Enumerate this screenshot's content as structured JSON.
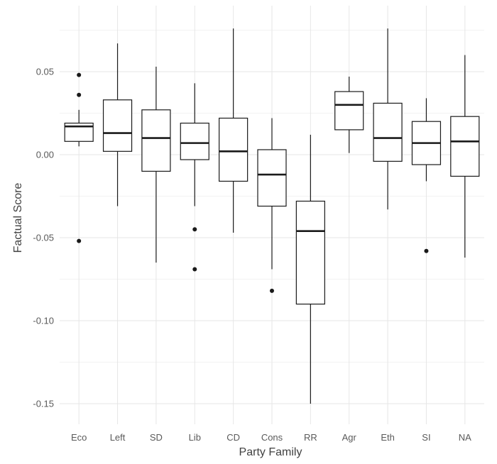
{
  "chart_data": {
    "type": "boxplot",
    "xlabel": "Party Family",
    "ylabel": "Factual Score",
    "ylim": [
      -0.162,
      0.078
    ],
    "yticks": [
      0.05,
      0.0,
      -0.05,
      -0.1,
      -0.15
    ],
    "ytick_labels": [
      "0.05",
      "0.00",
      "-0.05",
      "-0.10",
      "-0.15"
    ],
    "grid": true,
    "categories": [
      "Eco",
      "Left",
      "SD",
      "Lib",
      "CD",
      "Cons",
      "RR",
      "Agr",
      "Eth",
      "SI",
      "NA"
    ],
    "boxes": [
      {
        "category": "Eco",
        "whisker_low": 0.005,
        "q1": 0.008,
        "median": 0.017,
        "q3": 0.019,
        "whisker_high": 0.027,
        "outliers": [
          0.048,
          0.036,
          -0.052
        ]
      },
      {
        "category": "Left",
        "whisker_low": -0.031,
        "q1": 0.002,
        "median": 0.013,
        "q3": 0.033,
        "whisker_high": 0.067,
        "outliers": []
      },
      {
        "category": "SD",
        "whisker_low": -0.065,
        "q1": -0.01,
        "median": 0.01,
        "q3": 0.027,
        "whisker_high": 0.053,
        "outliers": []
      },
      {
        "category": "Lib",
        "whisker_low": -0.031,
        "q1": -0.003,
        "median": 0.007,
        "q3": 0.019,
        "whisker_high": 0.043,
        "outliers": [
          -0.045,
          -0.069
        ]
      },
      {
        "category": "CD",
        "whisker_low": -0.047,
        "q1": -0.016,
        "median": 0.002,
        "q3": 0.022,
        "whisker_high": 0.076,
        "outliers": []
      },
      {
        "category": "Cons",
        "whisker_low": -0.069,
        "q1": -0.031,
        "median": -0.012,
        "q3": 0.003,
        "whisker_high": 0.022,
        "outliers": [
          -0.082
        ]
      },
      {
        "category": "RR",
        "whisker_low": -0.15,
        "q1": -0.09,
        "median": -0.046,
        "q3": -0.028,
        "whisker_high": 0.012,
        "outliers": []
      },
      {
        "category": "Agr",
        "whisker_low": 0.001,
        "q1": 0.015,
        "median": 0.03,
        "q3": 0.038,
        "whisker_high": 0.047,
        "outliers": []
      },
      {
        "category": "Eth",
        "whisker_low": -0.033,
        "q1": -0.004,
        "median": 0.01,
        "q3": 0.031,
        "whisker_high": 0.076,
        "outliers": []
      },
      {
        "category": "SI",
        "whisker_low": -0.016,
        "q1": -0.006,
        "median": 0.007,
        "q3": 0.02,
        "whisker_high": 0.034,
        "outliers": [
          -0.058
        ]
      },
      {
        "category": "NA",
        "whisker_low": -0.062,
        "q1": -0.013,
        "median": 0.008,
        "q3": 0.023,
        "whisker_high": 0.06,
        "outliers": []
      }
    ]
  }
}
